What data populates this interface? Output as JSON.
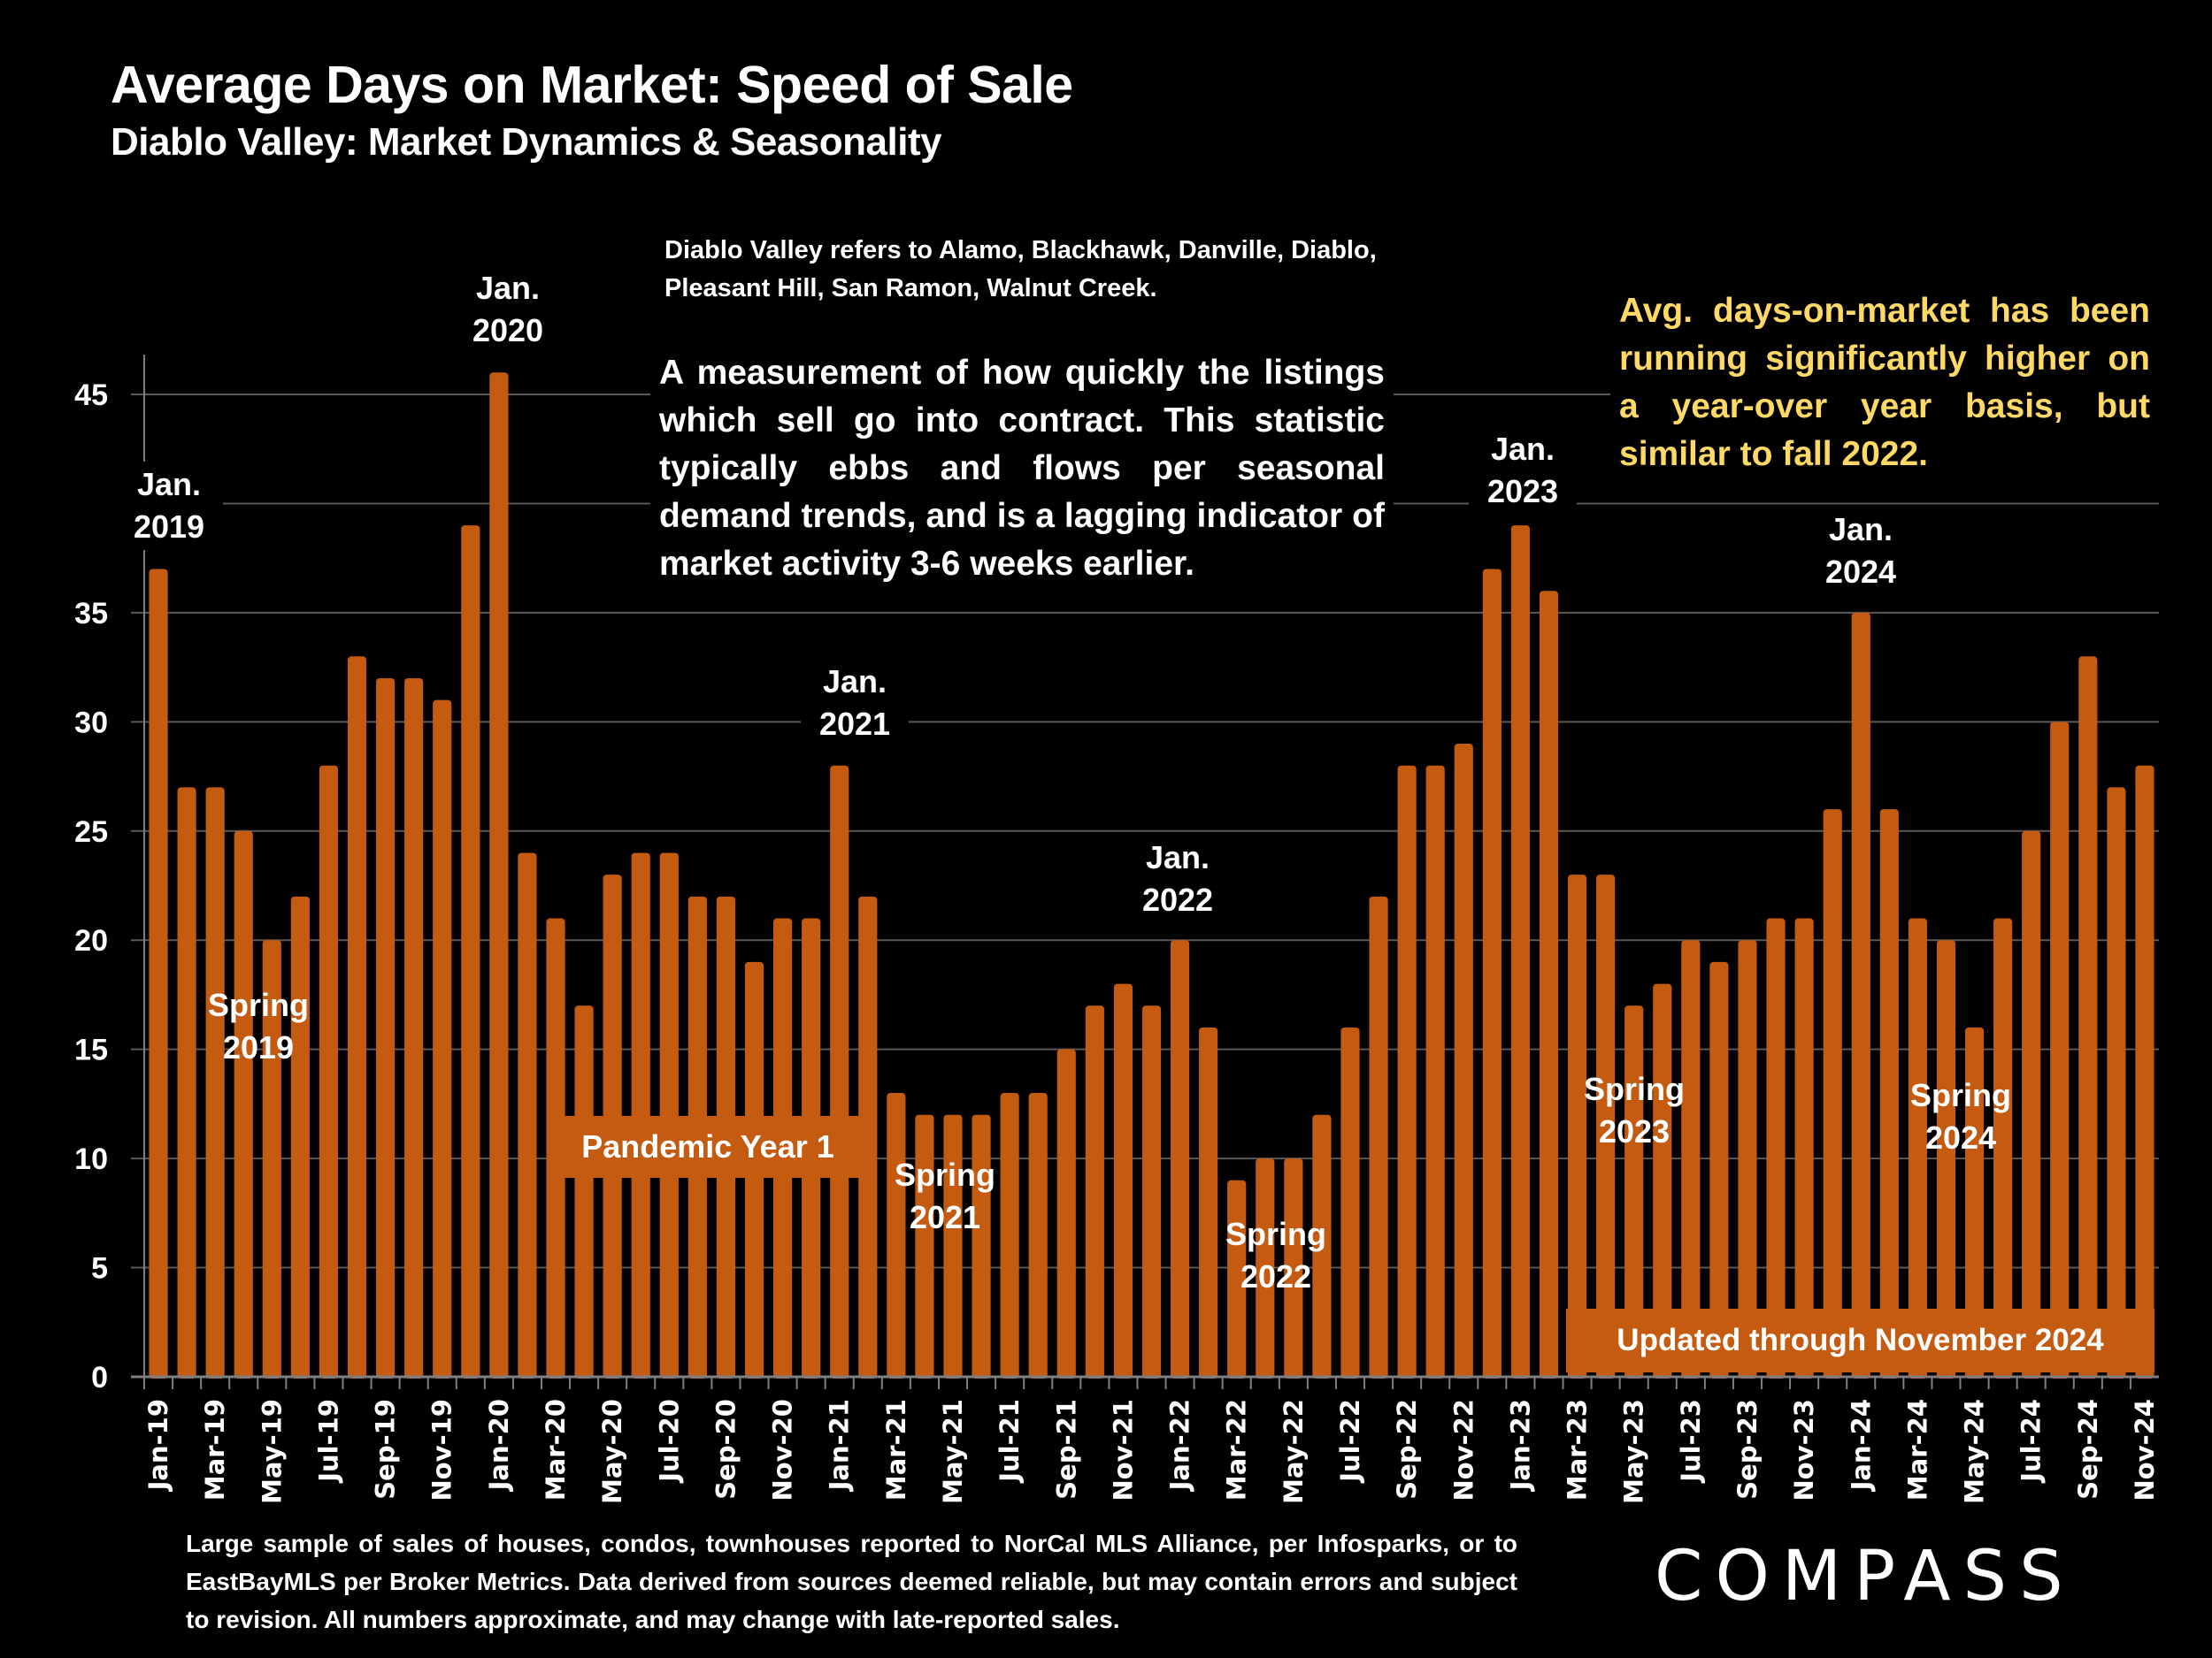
{
  "header": {
    "title": "Average Days on Market:  Speed of Sale",
    "subtitle": "Diablo Valley: Market Dynamics & Seasonality"
  },
  "notes": {
    "region": "Diablo Valley refers to Alamo, Blackhawk, Danville, Diablo, Pleasant Hill, San Ramon, Walnut Creek.",
    "description": "A measurement of how quickly the listings which sell go into contract. This statistic typically ebbs and flows per seasonal demand trends, and is a lagging indicator of market activity 3-6 weeks earlier.",
    "highlight": "Avg. days-on-market has been running significantly higher on a year-over year basis, but similar to fall 2022.",
    "highlight_color": "#FFD966"
  },
  "annotations": {
    "jan2019": [
      "Jan.",
      "2019"
    ],
    "jan2020": [
      "Jan.",
      "2020"
    ],
    "jan2021": [
      "Jan.",
      "2021"
    ],
    "jan2022": [
      "Jan.",
      "2022"
    ],
    "jan2023": [
      "Jan.",
      "2023"
    ],
    "jan2024": [
      "Jan.",
      "2024"
    ],
    "spring2019": [
      "Spring",
      "2019"
    ],
    "spring2021": [
      "Spring",
      "2021"
    ],
    "spring2022": [
      "Spring",
      "2022"
    ],
    "spring2023": [
      "Spring",
      "2023"
    ],
    "spring2024": [
      "Spring",
      "2024"
    ],
    "pandemic": "Pandemic Year 1",
    "updated": "Updated through November 2024"
  },
  "footer": {
    "source": "Large sample of sales of houses, condos, townhouses reported to NorCal MLS Alliance, per Infosparks, or to EastBayMLS per Broker Metrics. Data derived from sources deemed reliable, but may contain errors and subject to revision. All numbers approximate, and may change with late-reported sales.",
    "logo": "COMPASS"
  },
  "colors": {
    "bar": "#C55A11",
    "grid": "#595959",
    "axis": "#7F7F7F",
    "background": "#000000"
  },
  "chart_data": {
    "type": "bar",
    "title": "Average Days on Market:  Speed of Sale",
    "xlabel": "",
    "ylabel": "",
    "ylim": [
      0,
      45
    ],
    "yticks": [
      0,
      5,
      10,
      15,
      20,
      25,
      30,
      35,
      40,
      45
    ],
    "ytick_labels_visible": [
      "0",
      "5",
      "10",
      "15",
      "20",
      "25",
      "30",
      "35",
      "45"
    ],
    "grid": true,
    "categories": [
      "Jan-19",
      "Feb-19",
      "Mar-19",
      "Apr-19",
      "May-19",
      "Jun-19",
      "Jul-19",
      "Aug-19",
      "Sep-19",
      "Oct-19",
      "Nov-19",
      "Dec-19",
      "Jan-20",
      "Feb-20",
      "Mar-20",
      "Apr-20",
      "May-20",
      "Jun-20",
      "Jul-20",
      "Aug-20",
      "Sep-20",
      "Oct-20",
      "Nov-20",
      "Dec-20",
      "Jan-21",
      "Feb-21",
      "Mar-21",
      "Apr-21",
      "May-21",
      "Jun-21",
      "Jul-21",
      "Aug-21",
      "Sep-21",
      "Oct-21",
      "Nov-21",
      "Dec-21",
      "Jan-22",
      "Feb-22",
      "Mar-22",
      "Apr-22",
      "May-22",
      "Jun-22",
      "Jul-22",
      "Aug-22",
      "Sep-22",
      "Oct-22",
      "Nov-22",
      "Dec-22",
      "Jan-23",
      "Feb-23",
      "Mar-23",
      "Apr-23",
      "May-23",
      "Jun-23",
      "Jul-23",
      "Aug-23",
      "Sep-23",
      "Oct-23",
      "Nov-23",
      "Dec-23",
      "Jan-24",
      "Feb-24",
      "Mar-24",
      "Apr-24",
      "May-24",
      "Jun-24",
      "Jul-24",
      "Aug-24",
      "Sep-24",
      "Oct-24",
      "Nov-24"
    ],
    "xtick_labels": [
      "Jan-19",
      "Mar-19",
      "May-19",
      "Jul-19",
      "Sep-19",
      "Nov-19",
      "Jan-20",
      "Mar-20",
      "May-20",
      "Jul-20",
      "Sep-20",
      "Nov-20",
      "Jan-21",
      "Mar-21",
      "May-21",
      "Jul-21",
      "Sep-21",
      "Nov-21",
      "Jan-22",
      "Mar-22",
      "May-22",
      "Jul-22",
      "Sep-22",
      "Nov-22",
      "Jan-23",
      "Mar-23",
      "May-23",
      "Jul-23",
      "Sep-23",
      "Nov-23",
      "Jan-24",
      "Mar-24",
      "May-24",
      "Jul-24",
      "Sep-24",
      "Nov-24"
    ],
    "values": [
      37,
      27,
      27,
      25,
      20,
      22,
      28,
      33,
      32,
      32,
      31,
      39,
      46,
      24,
      21,
      17,
      23,
      24,
      24,
      22,
      22,
      19,
      21,
      21,
      28,
      22,
      13,
      12,
      12,
      12,
      13,
      13,
      15,
      17,
      18,
      17,
      20,
      16,
      9,
      10,
      10,
      12,
      16,
      22,
      28,
      28,
      29,
      37,
      39,
      36,
      23,
      23,
      17,
      18,
      20,
      19,
      20,
      21,
      21,
      26,
      35,
      26,
      21,
      20,
      16,
      21,
      25,
      30,
      33,
      27,
      28
    ]
  }
}
